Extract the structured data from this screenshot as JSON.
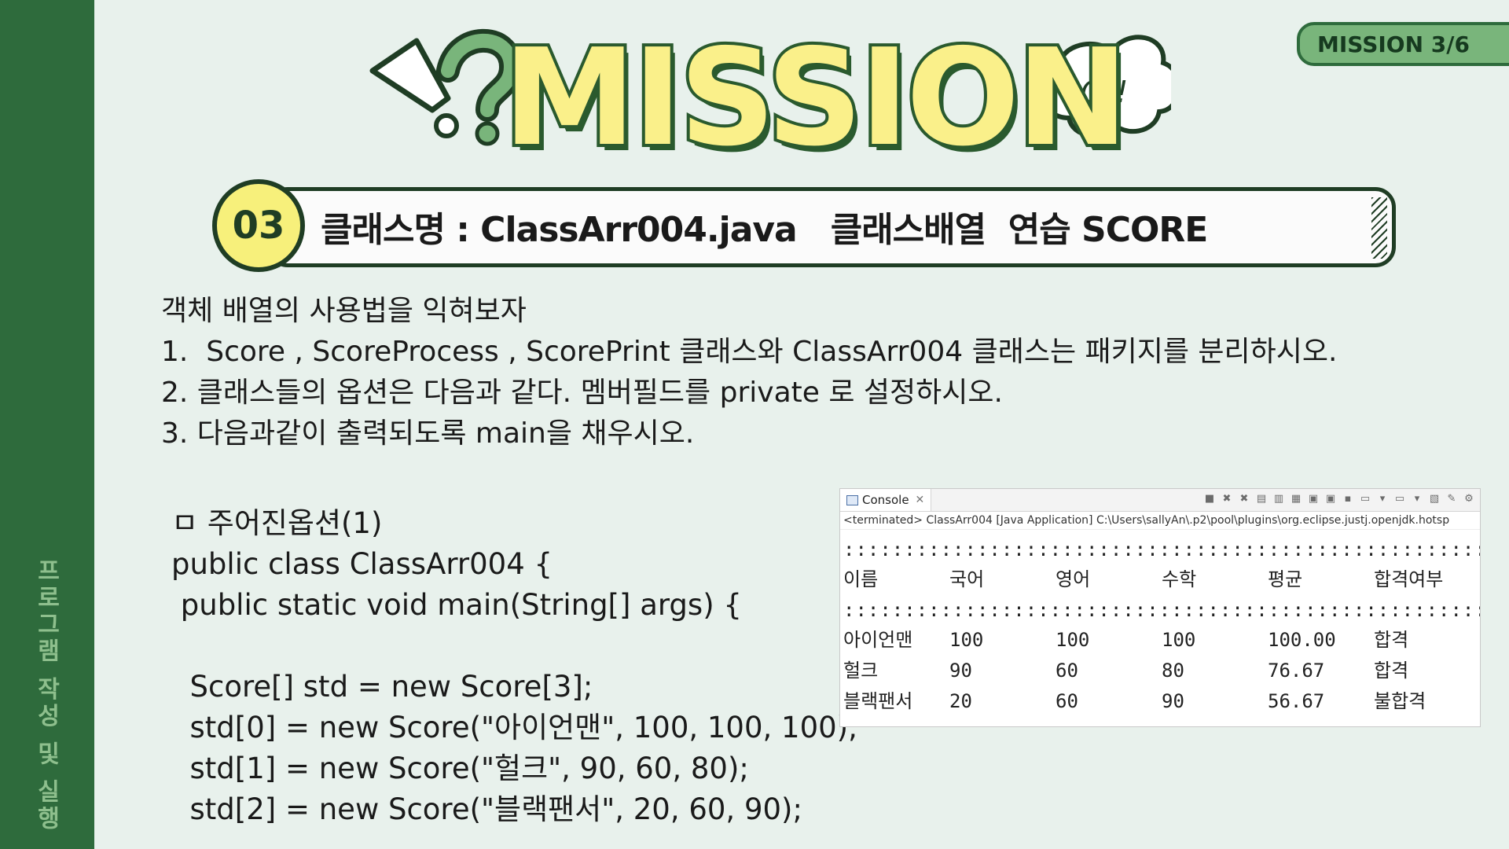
{
  "sidebar": {
    "label": "프로그램 작성 및 실행"
  },
  "mission_tag": "MISSION   3/6",
  "title": {
    "main": "MISSION",
    "bubble": "Q!!"
  },
  "header": {
    "number": "03",
    "text": "클래스명 : ClassArr004.java   클래스배열  연습 SCORE"
  },
  "instructions": [
    "객체 배열의 사용법을 익혀보자",
    "1.  Score , ScoreProcess , ScorePrint 클래스와 ClassArr004 클래스는 패키지를 분리하시오.",
    "2. 클래스들의 옵션은 다음과 같다. 멤버필드를 private 로 설정하시오.",
    "3. 다음과같이 출력되도록 main을 채우시오."
  ],
  "code": [
    "ㅁ 주어진옵션(1)",
    "public class ClassArr004 {",
    " public static void main(String[] args) {",
    "",
    "  Score[] std = new Score[3];",
    "  std[0] = new Score(\"아이언맨\", 100, 100, 100);",
    "  std[1] = new Score(\"헐크\", 90, 60, 80);",
    "  std[2] = new Score(\"블랙팬서\", 20, 60, 90);"
  ],
  "console": {
    "tab_label": "Console",
    "status": "<terminated> ClassArr004 [Java Application] C:\\Users\\sallyAn\\.p2\\pool\\plugins\\org.eclipse.justj.openjdk.hotsp",
    "separator": "::::::::::::::::::::::::::::::::::::::::::::::::::::::::",
    "headers": [
      "이름",
      "국어",
      "영어",
      "수학",
      "평균",
      "합격여부"
    ],
    "rows": [
      [
        "아이언맨",
        "100",
        "100",
        "100",
        "100.00",
        "합격"
      ],
      [
        "헐크",
        "90",
        "60",
        "80",
        "76.67",
        "합격"
      ],
      [
        "블랙팬서",
        "20",
        "60",
        "90",
        "56.67",
        "불합격"
      ]
    ]
  },
  "colors": {
    "background": "#e8f1ec",
    "sidebar": "#2e6b3c",
    "accent_yellow": "#f7f07b",
    "tag_green": "#79b57b"
  }
}
